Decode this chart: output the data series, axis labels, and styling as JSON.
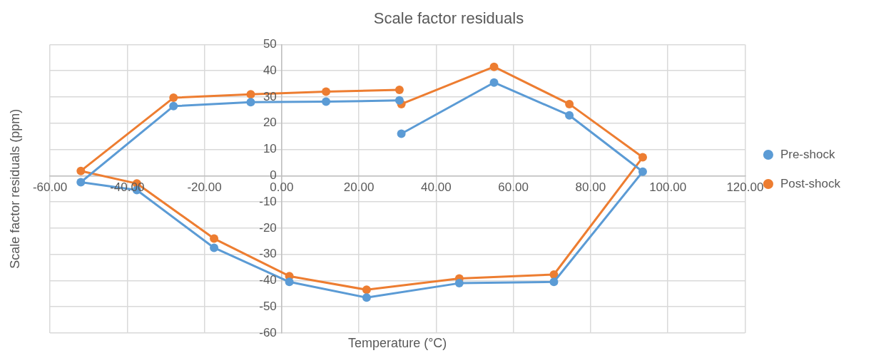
{
  "chart_data": {
    "type": "line",
    "title": "Scale factor residuals",
    "xlabel": "Temperature (°C)",
    "ylabel": "Scale factor residuals (ppm)",
    "xlim": [
      -60,
      120
    ],
    "xticks": [
      {
        "value": -60,
        "label": "-60.00"
      },
      {
        "value": -40,
        "label": "-40.00"
      },
      {
        "value": -20,
        "label": "-20.00"
      },
      {
        "value": 0,
        "label": "0.00"
      },
      {
        "value": 20,
        "label": "20.00"
      },
      {
        "value": 40,
        "label": "40.00"
      },
      {
        "value": 60,
        "label": "60.00"
      },
      {
        "value": 80,
        "label": "80.00"
      },
      {
        "value": 100,
        "label": "100.00"
      },
      {
        "value": 120,
        "label": "120.00"
      }
    ],
    "ylim": [
      -60,
      50
    ],
    "yticks": [
      -60,
      -50,
      -40,
      -30,
      -20,
      -10,
      0,
      10,
      20,
      30,
      40,
      50
    ],
    "grid": true,
    "legend": "right",
    "marker": "circle",
    "line_style": "solid",
    "series": [
      {
        "name": "Pre-shock",
        "color": "#5b9bd5",
        "x": [
          31,
          55,
          74.5,
          93.5,
          70.5,
          46,
          22,
          2,
          -17.5,
          -37.5,
          -52,
          -28,
          -8,
          11.5,
          30.5
        ],
        "values": [
          16,
          35.5,
          23,
          1.5,
          -40.5,
          -41,
          -46.5,
          -40.5,
          -27.5,
          -5.5,
          -2.5,
          26.5,
          28,
          28.2,
          28.7
        ]
      },
      {
        "name": "Post-shock",
        "color": "#ed7d31",
        "x": [
          31,
          55,
          74.5,
          93.5,
          70.5,
          46,
          22,
          2,
          -17.5,
          -37.5,
          -52,
          -28,
          -8,
          11.5,
          30.5
        ],
        "values": [
          27.3,
          41.5,
          27.3,
          7,
          -37.7,
          -39.2,
          -43.5,
          -38.3,
          -24,
          -3,
          1.8,
          29.7,
          31,
          32,
          32.7
        ]
      }
    ]
  }
}
